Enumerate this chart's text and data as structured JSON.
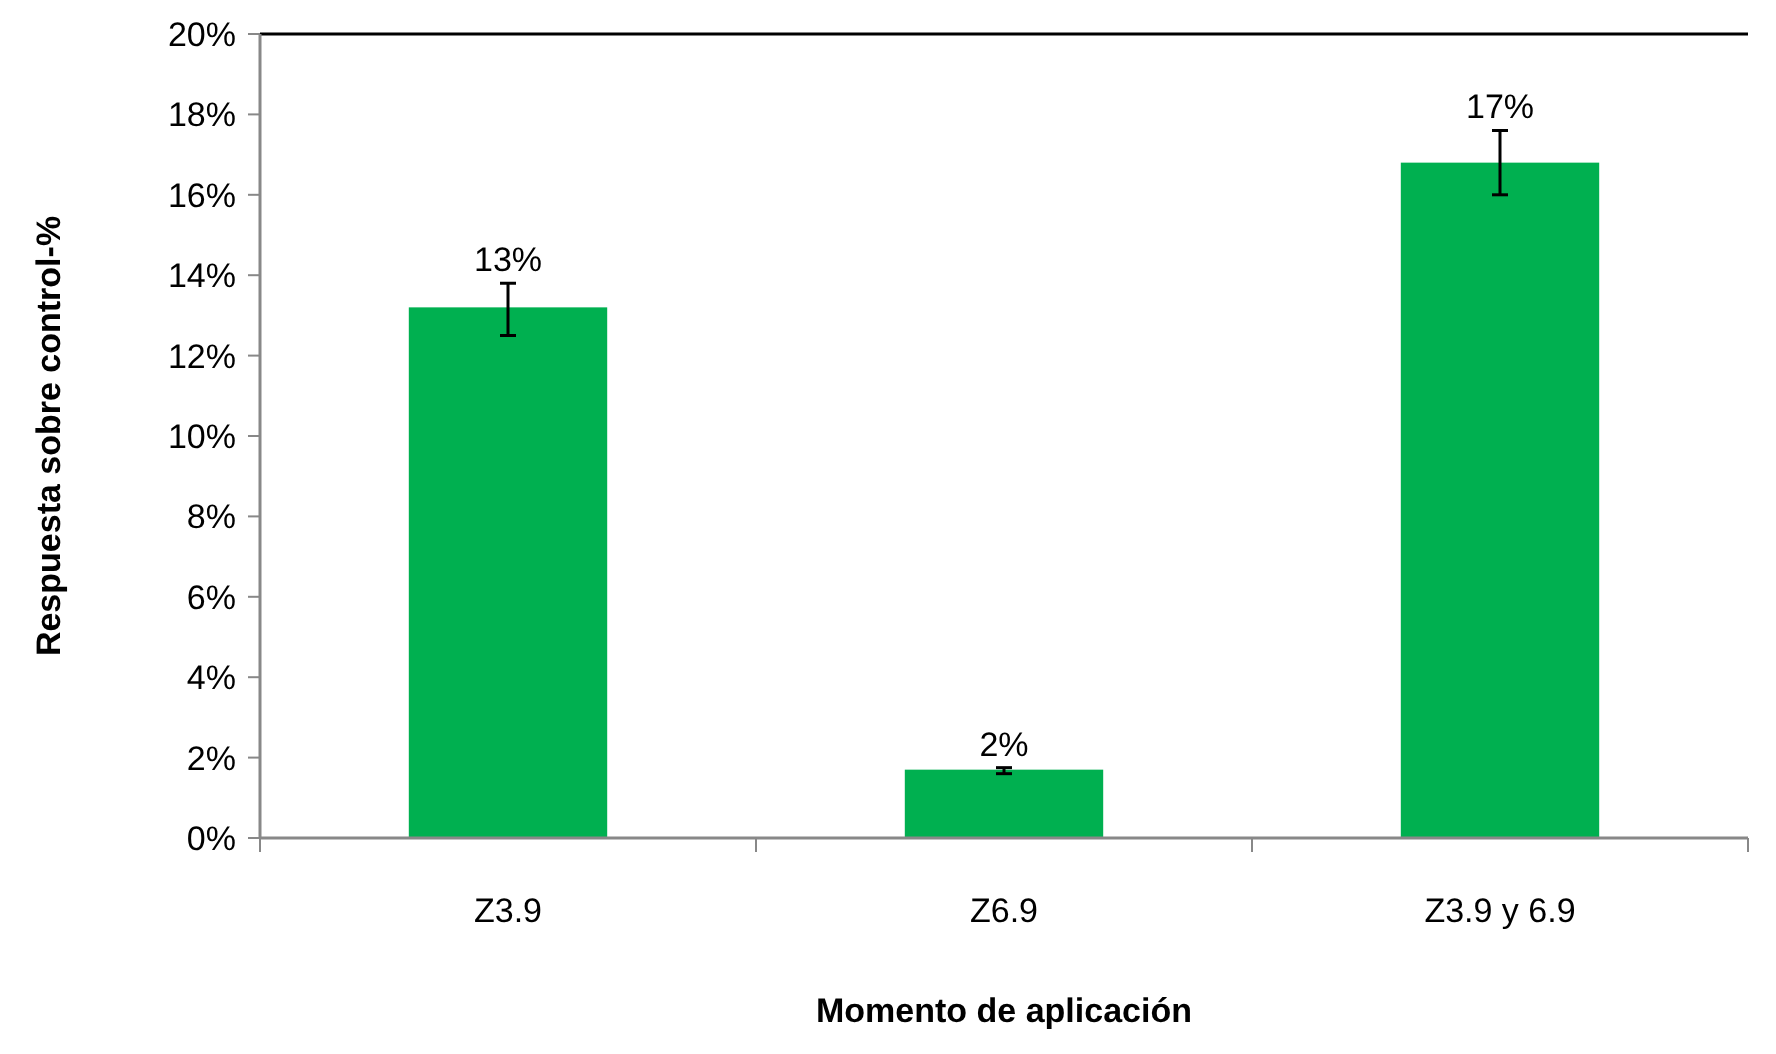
{
  "chart_data": {
    "type": "bar",
    "xlabel": "Momento de aplicación",
    "ylabel": "Respuesta sobre control-%",
    "categories": [
      "Z3.9",
      "Z6.9",
      "Z3.9 y 6.9"
    ],
    "values": [
      13.2,
      1.7,
      16.8
    ],
    "errors": [
      [
        12.5,
        13.8
      ],
      [
        1.6,
        1.75
      ],
      [
        16.0,
        17.6
      ]
    ],
    "value_labels": [
      "13%",
      "2%",
      "17%"
    ],
    "color": "#00b050",
    "ylim": [
      0,
      20
    ],
    "yticks": [
      {
        "value": 0,
        "label": "0%"
      },
      {
        "value": 2,
        "label": "2%"
      },
      {
        "value": 4,
        "label": "4%"
      },
      {
        "value": 6,
        "label": "6%"
      },
      {
        "value": 8,
        "label": "8%"
      },
      {
        "value": 10,
        "label": "10%"
      },
      {
        "value": 12,
        "label": "12%"
      },
      {
        "value": 14,
        "label": "14%"
      },
      {
        "value": 16,
        "label": "16%"
      },
      {
        "value": 18,
        "label": "18%"
      },
      {
        "value": 20,
        "label": "20%"
      }
    ],
    "grid": false
  }
}
